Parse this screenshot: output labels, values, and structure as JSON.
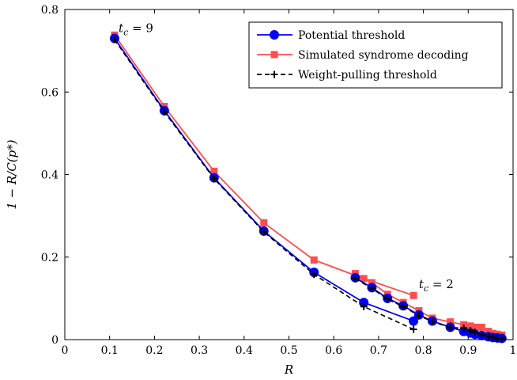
{
  "chart_data": {
    "type": "line",
    "xlabel": "R",
    "ylabel": "1 − R/C(p*)",
    "xlim": [
      0,
      1
    ],
    "ylim": [
      0,
      0.8
    ],
    "x_ticks": [
      "0",
      "0.1",
      "0.2",
      "0.3",
      "0.4",
      "0.5",
      "0.6",
      "0.7",
      "0.8",
      "0.9",
      "1"
    ],
    "y_ticks": [
      "0",
      "0.2",
      "0.4",
      "0.6",
      "0.8"
    ],
    "grid": false,
    "legend_position": "top-right",
    "annotations": [
      {
        "base": "t",
        "sub": "c",
        "rest": " = 9",
        "x": 0.12,
        "y": 0.745
      },
      {
        "base": "t",
        "sub": "c",
        "rest": " = 2",
        "x": 0.79,
        "y": 0.125
      }
    ],
    "series": [
      {
        "name": "Potential threshold",
        "color": "#0000ff",
        "marker": "circle",
        "line": "solid",
        "x": [
          0.111,
          0.222,
          0.333,
          0.444,
          0.556,
          0.667,
          0.778
        ],
        "y": [
          0.73,
          0.555,
          0.392,
          0.263,
          0.163,
          0.09,
          0.045
        ],
        "extra_curves": [
          {
            "x": [
              0.648,
              0.685,
              0.72,
              0.755,
              0.79,
              0.82,
              0.86,
              0.89,
              0.905,
              0.915,
              0.93,
              0.945,
              0.955,
              0.965,
              0.975
            ],
            "y": [
              0.15,
              0.126,
              0.1,
              0.082,
              0.06,
              0.045,
              0.03,
              0.02,
              0.016,
              0.013,
              0.01,
              0.007,
              0.005,
              0.004,
              0.003
            ]
          }
        ]
      },
      {
        "name": "Simulated syndrome decoding",
        "color": "#ff4d4d",
        "marker": "square",
        "line": "solid",
        "x": [
          0.111,
          0.222,
          0.333,
          0.444,
          0.556,
          0.667,
          0.778
        ],
        "y": [
          0.738,
          0.565,
          0.408,
          0.283,
          0.193,
          0.148,
          0.107
        ],
        "extra_curves": [
          {
            "x": [
              0.648,
              0.685,
              0.72,
              0.755,
              0.79,
              0.82,
              0.86,
              0.89,
              0.905,
              0.915,
              0.93,
              0.945,
              0.955,
              0.965,
              0.975
            ],
            "y": [
              0.16,
              0.138,
              0.11,
              0.09,
              0.07,
              0.052,
              0.043,
              0.036,
              0.033,
              0.03,
              0.03,
              0.02,
              0.015,
              0.013,
              0.011
            ]
          }
        ]
      },
      {
        "name": "Weight-pulling threshold",
        "color": "#000000",
        "marker": "plus",
        "line": "dashed",
        "x": [
          0.111,
          0.222,
          0.333,
          0.444,
          0.556,
          0.667,
          0.778
        ],
        "y": [
          0.727,
          0.552,
          0.39,
          0.261,
          0.158,
          0.08,
          0.025
        ],
        "extra_curves": [
          {
            "x": [
              0.648,
              0.685,
              0.72,
              0.755,
              0.79,
              0.82,
              0.86,
              0.89,
              0.905,
              0.915,
              0.93,
              0.945,
              0.955,
              0.965,
              0.975
            ],
            "y": [
              0.148,
              0.124,
              0.098,
              0.08,
              0.058,
              0.044,
              0.029,
              0.028,
              0.022,
              0.018,
              0.012,
              0.008,
              0.006,
              0.004,
              0.003
            ]
          }
        ]
      }
    ]
  }
}
